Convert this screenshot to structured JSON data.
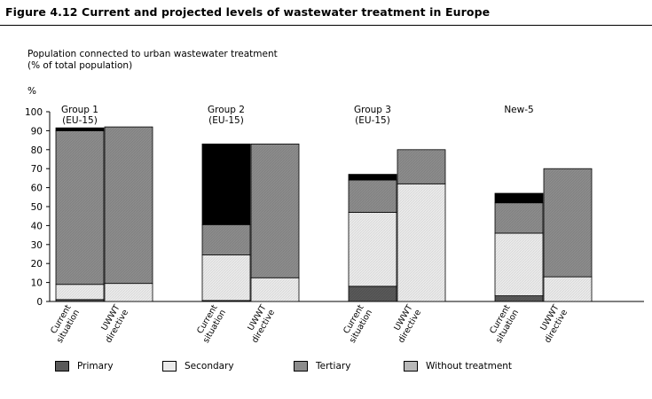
{
  "figure": {
    "title": "Figure 4.12 Current and projected levels of wastewater treatment in Europe",
    "subtitle_line1": "Population connected to urban wastewater treatment",
    "subtitle_line2": "(% of total population)",
    "unit": "%"
  },
  "chart_data": {
    "type": "bar",
    "stacked": true,
    "ylabel": "%",
    "ylim": [
      0,
      100
    ],
    "yticks": [
      0,
      10,
      20,
      30,
      40,
      50,
      60,
      70,
      80,
      90,
      100
    ],
    "grid": false,
    "legend_position": "bottom",
    "groups": [
      {
        "label_line1": "Group 1",
        "label_line2": "(EU-15)"
      },
      {
        "label_line1": "Group 2",
        "label_line2": "(EU-15)"
      },
      {
        "label_line1": "Group 3",
        "label_line2": "(EU-15)"
      },
      {
        "label_line1": "New-5",
        "label_line2": ""
      }
    ],
    "bar_labels": [
      {
        "line1": "Current",
        "line2": "situation"
      },
      {
        "line1": "UWWT",
        "line2": "directive"
      }
    ],
    "series": [
      {
        "name": "Primary",
        "color": "#595959",
        "values": [
          [
            1,
            0
          ],
          [
            0.5,
            0
          ],
          [
            8,
            0
          ],
          [
            3,
            0
          ]
        ]
      },
      {
        "name": "Secondary",
        "color": "#ebebeb",
        "values": [
          [
            8,
            9.5
          ],
          [
            24,
            12.5
          ],
          [
            39,
            62
          ],
          [
            33,
            13
          ]
        ]
      },
      {
        "name": "Tertiary",
        "color": "#8c8c8c",
        "values": [
          [
            81,
            82.5
          ],
          [
            16,
            70.5
          ],
          [
            17,
            18
          ],
          [
            16,
            57
          ]
        ]
      },
      {
        "name": "Without treatment",
        "color": "#b8b8b8",
        "values": [
          [
            1.5,
            0
          ],
          [
            42.5,
            0
          ],
          [
            3,
            0
          ],
          [
            5,
            0
          ]
        ]
      }
    ]
  }
}
